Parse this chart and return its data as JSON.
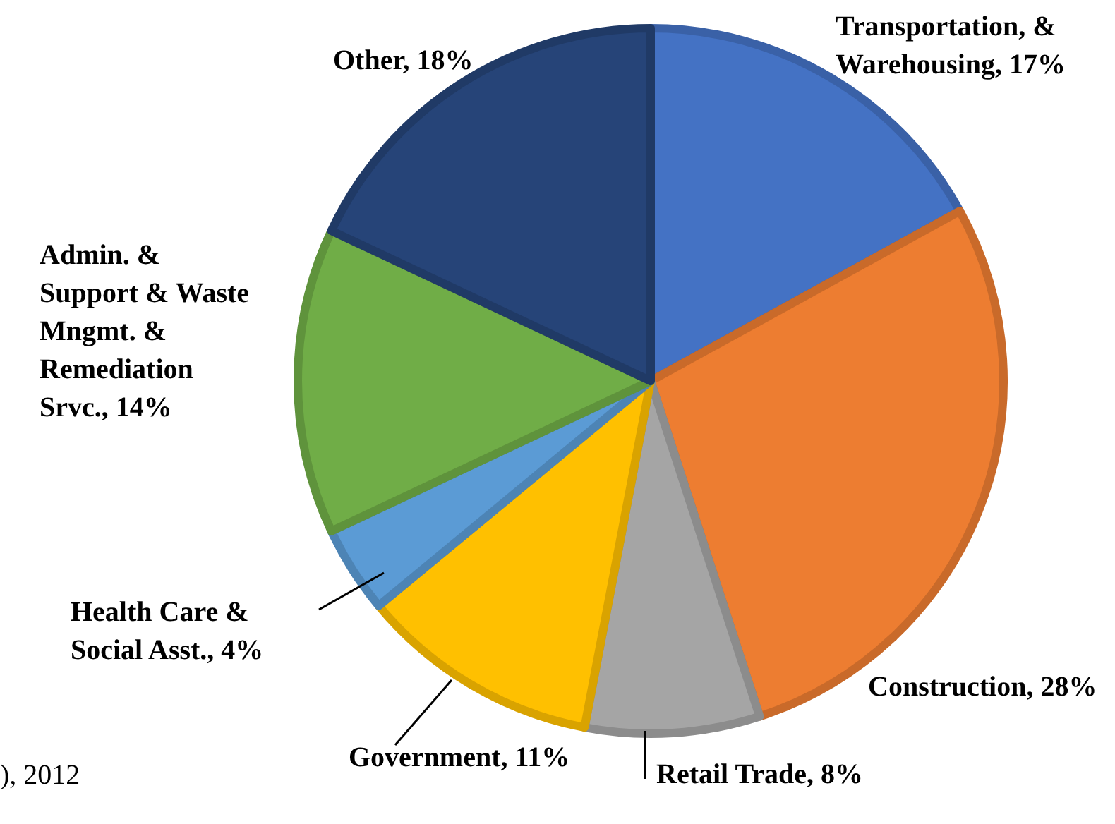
{
  "chart_data": {
    "type": "pie",
    "categories": [
      "Transportation, & Warehousing",
      "Construction",
      "Retail Trade",
      "Government",
      "Health Care & Social Asst.",
      "Admin. & Support & Waste Mngmt. & Remediation Srvc.",
      "Other"
    ],
    "values": [
      17,
      28,
      8,
      11,
      4,
      14,
      18
    ],
    "value_labels": [
      "17%",
      "28%",
      "8%",
      "11%",
      "4%",
      "14%",
      "18%"
    ],
    "colors": [
      "#4472c4",
      "#ed7d31",
      "#a5a5a5",
      "#ffc000",
      "#5b9bd5",
      "#70ad47",
      "#264478"
    ],
    "legend": false,
    "annotations": [
      "), 2012"
    ]
  }
}
